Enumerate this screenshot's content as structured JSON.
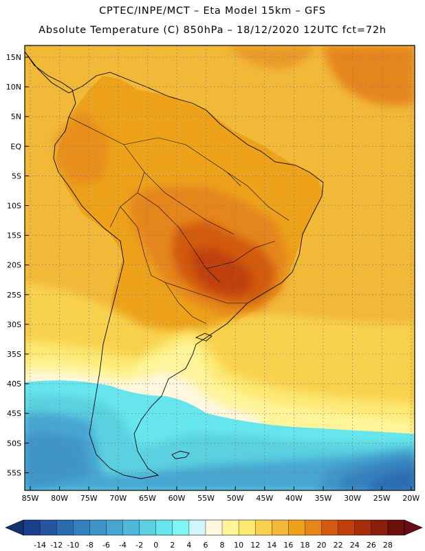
{
  "header": {
    "title_line1": "CPTEC/INPE/MCT –  Eta Model 15km – GFS",
    "title_line2": "Absolute Temperature (C) 850hPa – 18/12/2020 12UTC fct=72h"
  },
  "map": {
    "lat_labels": [
      "15N",
      "10N",
      "5N",
      "EQ",
      "5S",
      "10S",
      "15S",
      "20S",
      "25S",
      "30S",
      "35S",
      "40S",
      "45S",
      "50S",
      "55S"
    ],
    "lon_labels": [
      "85W",
      "80W",
      "75W",
      "70W",
      "65W",
      "60W",
      "55W",
      "50W",
      "45W",
      "40W",
      "35W",
      "30W",
      "25W",
      "20W"
    ]
  },
  "colorbar": {
    "labels": [
      "-14",
      "-12",
      "-10",
      "-8",
      "-6",
      "-4",
      "-2",
      "0",
      "2",
      "4",
      "6",
      "8",
      "10",
      "12",
      "14",
      "16",
      "18",
      "20",
      "22",
      "24",
      "26",
      "28"
    ],
    "colors": [
      "#1a3f8c",
      "#2456a0",
      "#2a6cb0",
      "#3480be",
      "#3f95c8",
      "#46a6d1",
      "#4fb8d8",
      "#5ad0e0",
      "#66e6ec",
      "#7ef6f4",
      "#d0f6fa",
      "#fff7df",
      "#fff49a",
      "#fde872",
      "#f8d24e",
      "#f2b838",
      "#eda21a",
      "#e5861a",
      "#d25a10",
      "#c0400a",
      "#a52d0a",
      "#8a1f0c",
      "#6a1008"
    ],
    "left_arrow_color": "#17306e",
    "right_arrow_color": "#6a0a18"
  },
  "fields": {
    "ocean_base": "#f2b838",
    "land_base": "#eda21a",
    "hot_1": "#e5861a",
    "hot_2": "#d25a10",
    "hot_3": "#c0400a",
    "warm_light": "#f8d24e",
    "cool_yellow": "#fde872",
    "pale": "#fff49a",
    "cream": "#fff7df",
    "cyan": "#66e6ec",
    "cyan_mid": "#5ad0e0",
    "blue_1": "#46a6d1",
    "blue_2": "#3f95c8",
    "blue_3": "#3480be",
    "blue_4": "#2a6cb0"
  }
}
